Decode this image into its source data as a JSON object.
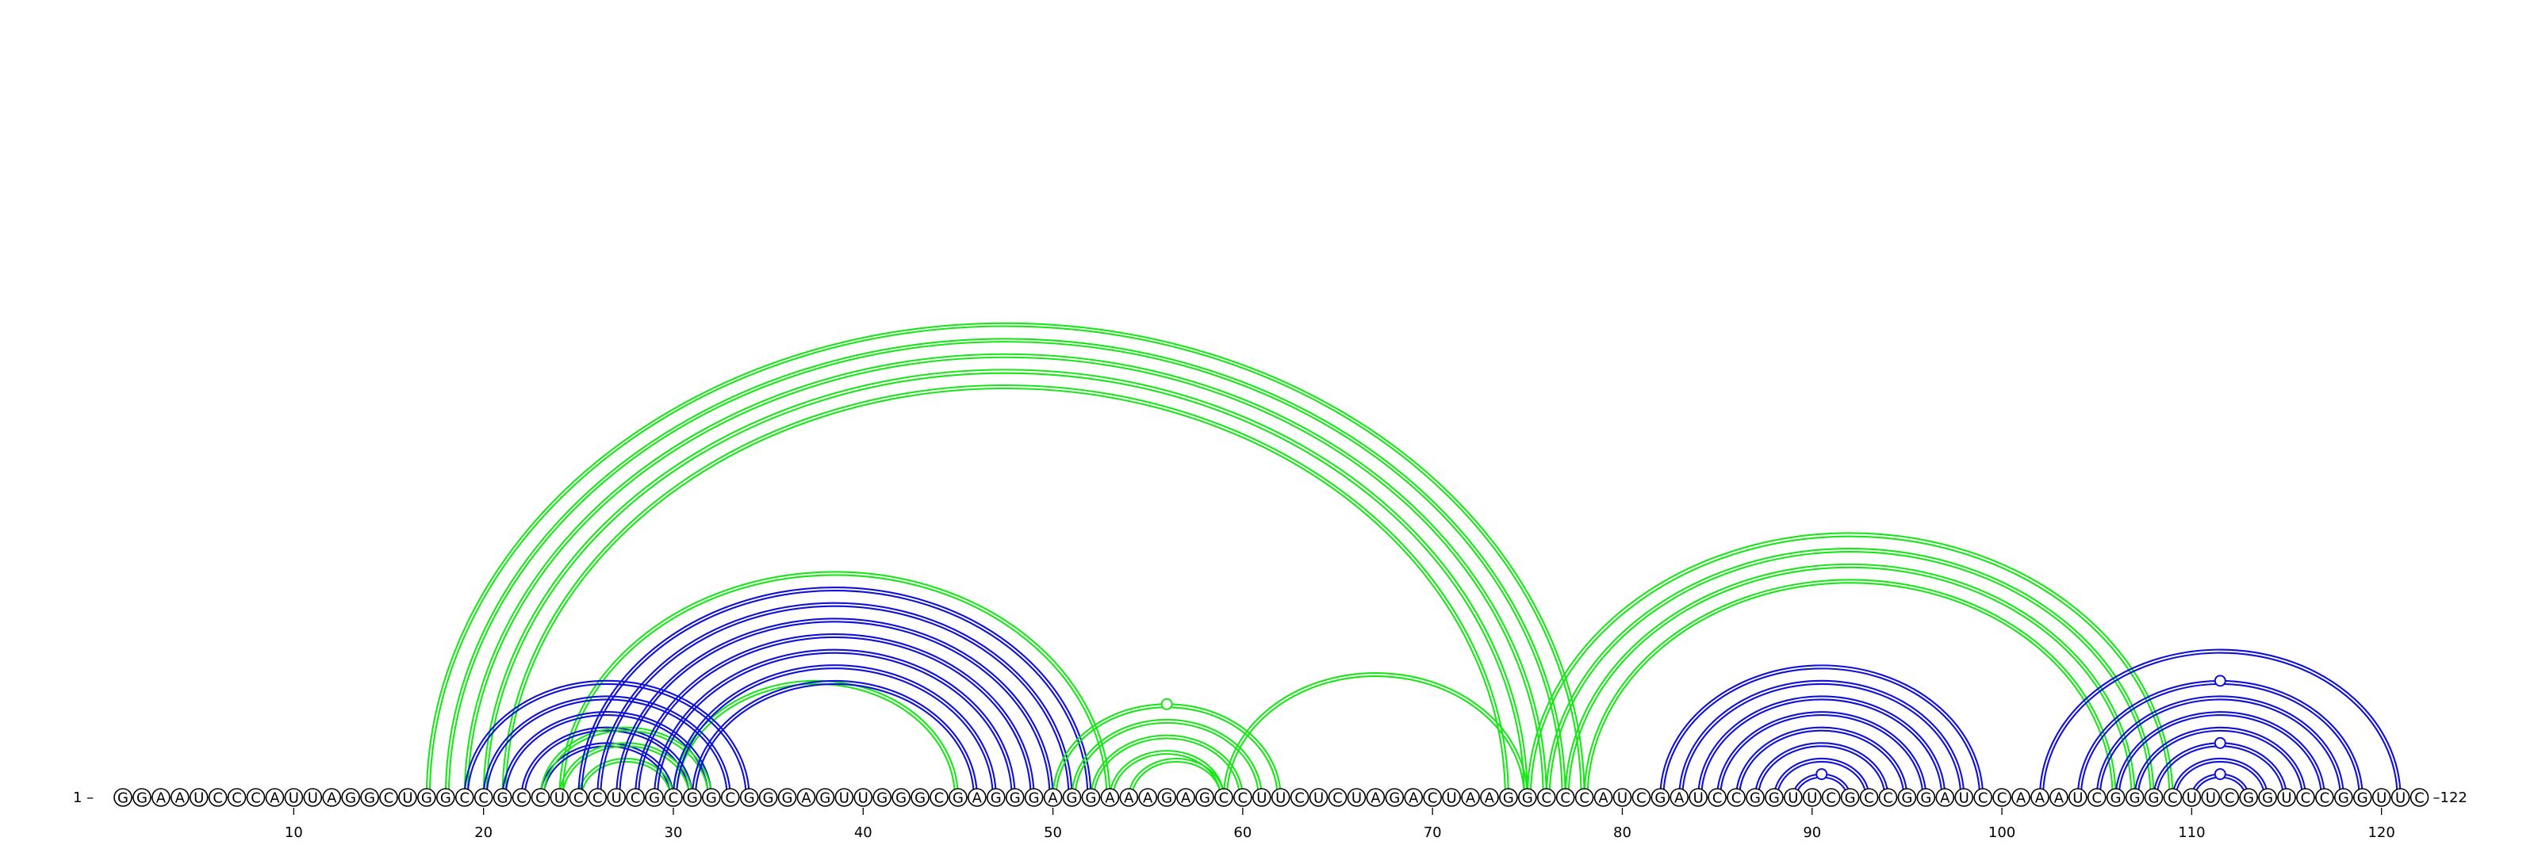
{
  "sequence": "GGAAUCCCAUUAGGCUGGCCGCCUCCUCGCGGCGGGAGUUGGGCGAGGGAGGAAAGAGCCUUCUCUAGACUAAGGCCCAUCGAUCCGGUUCGCCGGAUCCAAAUCGGGCUUCGGUCCGGUUC",
  "start_label": "1 –",
  "end_label": "–122",
  "tick_positions": [
    10,
    20,
    30,
    40,
    50,
    60,
    70,
    80,
    90,
    100,
    110,
    120
  ],
  "tick_labels": [
    "10",
    "20",
    "30",
    "40",
    "50",
    "60",
    "70",
    "80",
    "90",
    "100",
    "110",
    "120"
  ],
  "colors": {
    "green": "#19e619",
    "blue": "#1010d8"
  },
  "arcs": [
    {
      "i": 17,
      "j": 78,
      "c": "green"
    },
    {
      "i": 18,
      "j": 77,
      "c": "green"
    },
    {
      "i": 19,
      "j": 76,
      "c": "green"
    },
    {
      "i": 20,
      "j": 75,
      "c": "green"
    },
    {
      "i": 21,
      "j": 74,
      "c": "green"
    },
    {
      "i": 24,
      "j": 53,
      "c": "green"
    },
    {
      "i": 30,
      "j": 45,
      "c": "green"
    },
    {
      "i": 19,
      "j": 34,
      "c": "blue"
    },
    {
      "i": 20,
      "j": 33,
      "c": "blue"
    },
    {
      "i": 21,
      "j": 32,
      "c": "blue"
    },
    {
      "i": 22,
      "j": 31,
      "c": "blue"
    },
    {
      "i": 23,
      "j": 30,
      "c": "blue"
    },
    {
      "i": 23,
      "j": 32,
      "c": "green"
    },
    {
      "i": 24,
      "j": 31,
      "c": "green"
    },
    {
      "i": 25,
      "j": 30,
      "c": "green"
    },
    {
      "i": 25,
      "j": 52,
      "c": "blue"
    },
    {
      "i": 26,
      "j": 51,
      "c": "blue"
    },
    {
      "i": 27,
      "j": 50,
      "c": "blue"
    },
    {
      "i": 28,
      "j": 49,
      "c": "blue"
    },
    {
      "i": 29,
      "j": 48,
      "c": "blue"
    },
    {
      "i": 30,
      "j": 47,
      "c": "blue"
    },
    {
      "i": 31,
      "j": 46,
      "c": "blue"
    },
    {
      "i": 50,
      "j": 62,
      "c": "green"
    },
    {
      "i": 51,
      "j": 61,
      "c": "green"
    },
    {
      "i": 52,
      "j": 60,
      "c": "green"
    },
    {
      "i": 53,
      "j": 59,
      "c": "green"
    },
    {
      "i": 54,
      "j": 59,
      "c": "green"
    },
    {
      "i": 59,
      "j": 75,
      "c": "green"
    },
    {
      "i": 75,
      "j": 109,
      "c": "green"
    },
    {
      "i": 76,
      "j": 108,
      "c": "green"
    },
    {
      "i": 77,
      "j": 107,
      "c": "green"
    },
    {
      "i": 78,
      "j": 106,
      "c": "green"
    },
    {
      "i": 82,
      "j": 99,
      "c": "blue"
    },
    {
      "i": 83,
      "j": 98,
      "c": "blue"
    },
    {
      "i": 84,
      "j": 97,
      "c": "blue"
    },
    {
      "i": 85,
      "j": 96,
      "c": "blue"
    },
    {
      "i": 86,
      "j": 95,
      "c": "blue"
    },
    {
      "i": 87,
      "j": 94,
      "c": "blue"
    },
    {
      "i": 88,
      "j": 93,
      "c": "blue"
    },
    {
      "i": 89,
      "j": 92,
      "c": "blue"
    },
    {
      "i": 102,
      "j": 121,
      "c": "blue"
    },
    {
      "i": 104,
      "j": 119,
      "c": "blue"
    },
    {
      "i": 105,
      "j": 118,
      "c": "blue"
    },
    {
      "i": 106,
      "j": 117,
      "c": "blue"
    },
    {
      "i": 107,
      "j": 116,
      "c": "blue"
    },
    {
      "i": 108,
      "j": 115,
      "c": "blue"
    },
    {
      "i": 109,
      "j": 114,
      "c": "blue"
    },
    {
      "i": 110,
      "j": 113,
      "c": "blue"
    }
  ],
  "loop_markers": [
    {
      "pos": 56.0,
      "over_arc": [
        50,
        62
      ],
      "c": "green"
    },
    {
      "pos": 90.5,
      "over_arc": [
        89,
        92
      ],
      "c": "blue"
    },
    {
      "pos": 111.5,
      "over_arc": [
        110,
        113
      ],
      "c": "blue"
    },
    {
      "pos": 111.5,
      "over_arc": [
        108,
        115
      ],
      "c": "blue"
    },
    {
      "pos": 111.5,
      "over_arc": [
        104,
        119
      ],
      "c": "blue"
    }
  ]
}
